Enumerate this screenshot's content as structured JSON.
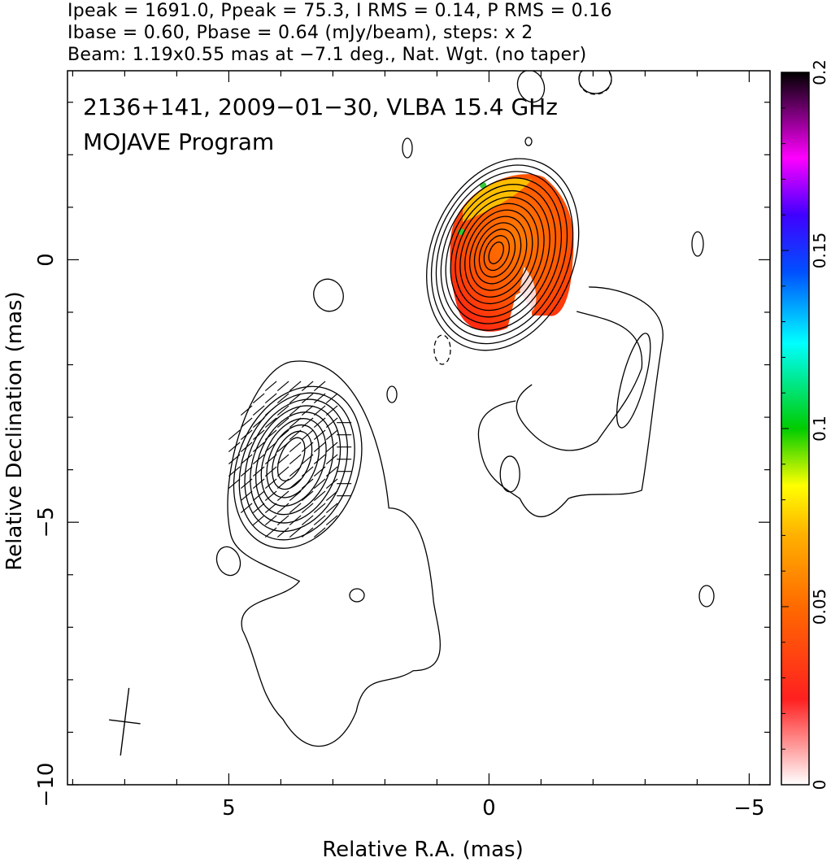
{
  "header": {
    "line1": "Ipeak = 1691.0, Ppeak = 75.3, I RMS = 0.14, P RMS = 0.16",
    "line2": "Ibase = 0.60, Pbase = 0.64 (mJy/beam), steps: x 2",
    "line3": "Beam: 1.19x0.55 mas at −7.1 deg., Nat. Wgt. (no taper)"
  },
  "chart_data": {
    "type": "heatmap",
    "title": "2136+141, 2009−01−30, VLBA 15.4 GHz",
    "subtitle": "MOJAVE Program",
    "xlabel": "Relative R.A. (mas)",
    "ylabel": "Relative Declination (mas)",
    "xlim": [
      8.1,
      -5.4
    ],
    "ylim": [
      -10,
      3.6
    ],
    "x_ticks": [
      5,
      0,
      -5
    ],
    "x_tick_labels": [
      "5",
      "0",
      "−5"
    ],
    "y_ticks": [
      0,
      -5,
      -10
    ],
    "y_tick_labels": [
      "0",
      "−5",
      "−10"
    ],
    "colorbar": {
      "range": [
        0,
        0.2
      ],
      "ticks": [
        0,
        0.05,
        0.1,
        0.15,
        0.2
      ],
      "tick_labels": [
        "0",
        "0.05",
        "0.1",
        "0.15",
        "0.2"
      ]
    },
    "peak_ra_mas": -0.2,
    "peak_dec_mas": 0.1,
    "secondary_component_ra_mas": 3.8,
    "secondary_component_dec_mas": -3.8,
    "beam": {
      "major_mas": 1.19,
      "minor_mas": 0.55,
      "pa_deg": -7.1,
      "center_ra_mas": 7.0,
      "center_dec_mas": -8.8
    },
    "colors": {
      "low": "#ff0000",
      "mid": "#ff7f00",
      "high": "#ffd700",
      "edge": "#33cc33"
    }
  }
}
